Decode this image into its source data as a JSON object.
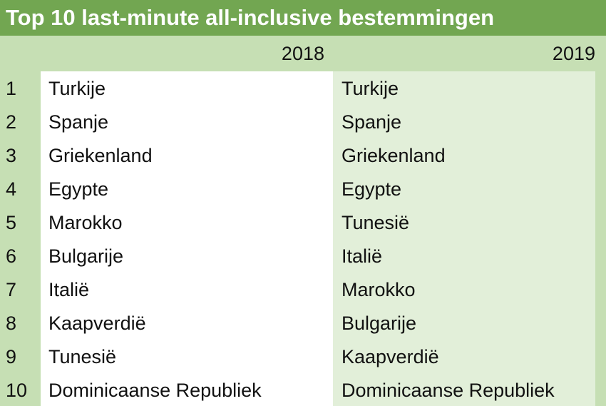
{
  "title": "Top 10 last-minute all-inclusive bestemmingen",
  "table": {
    "header": [
      "2018",
      "2019"
    ],
    "rows": [
      [
        "1",
        "Turkije",
        "Turkije"
      ],
      [
        "2",
        "Spanje",
        "Spanje"
      ],
      [
        "3",
        "Griekenland",
        "Griekenland"
      ],
      [
        "4",
        "Egypte",
        "Egypte"
      ],
      [
        "5",
        "Marokko",
        "Tunesië"
      ],
      [
        "6",
        "Bulgarije",
        "Italië"
      ],
      [
        "7",
        "Italië",
        "Marokko"
      ],
      [
        "8",
        "Kaapverdië",
        "Bulgarije"
      ],
      [
        "9",
        "Tunesië",
        "Kaapverdië"
      ],
      [
        "10",
        "Dominicaanse Republiek",
        "Dominicaanse Republiek"
      ]
    ]
  }
}
